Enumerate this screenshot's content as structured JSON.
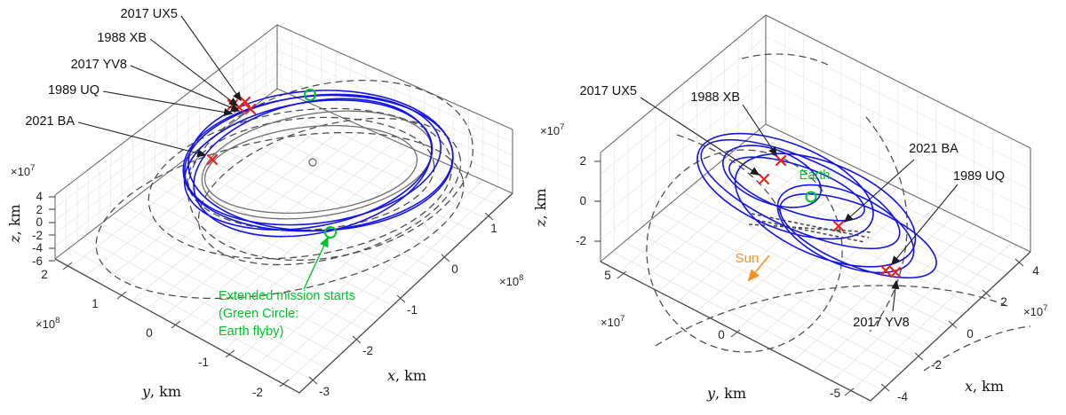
{
  "colors": {
    "trajectory_blue": "#1414e8",
    "orbit_gray": "#6e6e6e",
    "dashed_gray": "#4a4a4a",
    "marker_red": "#e8231e",
    "annotation_green": "#00c22a",
    "sun_orange": "#f59120",
    "axis_edge": "#484848",
    "grid": "#e0e0e0"
  },
  "left_plot": {
    "callouts": [
      "2017 UX5",
      "1988 XB",
      "2017 YV8",
      "1989 UQ",
      "2021 BA"
    ],
    "annotation_lines": [
      "Extended mission starts",
      "(Green Circle:",
      "Earth flyby)"
    ],
    "x_axis": {
      "var": "x",
      "unit": ", km",
      "exp_base": "×10",
      "exp_power": "8",
      "ticks": [
        "-3",
        "-2",
        "-1",
        "0",
        "1"
      ]
    },
    "y_axis": {
      "var": "y",
      "unit": ", km",
      "exp_base": "×10",
      "exp_power": "8",
      "ticks": [
        "2",
        "1",
        "0",
        "-1",
        "-2"
      ]
    },
    "z_axis": {
      "var": "z",
      "unit": ", km",
      "exp_base": "×10",
      "exp_power": "7",
      "ticks": [
        "4",
        "2",
        "0",
        "-2",
        "-4",
        "-6"
      ]
    }
  },
  "right_plot": {
    "callouts": [
      "2017 UX5",
      "1988 XB",
      "2021 BA",
      "1989 UQ",
      "2017 YV8"
    ],
    "earth_label": "Earth",
    "sun_label": "Sun",
    "x_axis": {
      "var": "x",
      "unit": ", km",
      "exp_base": "×10",
      "exp_power": "7",
      "ticks": [
        "-4",
        "-2",
        "0",
        "2",
        "4"
      ]
    },
    "y_axis": {
      "var": "y",
      "unit": ", km",
      "exp_base": "×10",
      "exp_power": "7",
      "ticks": [
        "5",
        "0",
        "-5"
      ]
    },
    "z_axis": {
      "var": "z",
      "unit": ", km",
      "exp_base": "×10",
      "exp_power": "7",
      "ticks": [
        "2",
        "0",
        "-2"
      ]
    }
  },
  "chart_data": [
    {
      "type": "line",
      "projection": "3d",
      "frame": "heliocentric",
      "xlabel": "x, km",
      "ylabel": "y, km",
      "zlabel": "z, km",
      "x_exponent": 100000000.0,
      "y_exponent": 100000000.0,
      "z_exponent": 10000000.0,
      "xticks": [
        -3,
        -2,
        -1,
        0,
        1
      ],
      "yticks": [
        2,
        1,
        0,
        -1,
        -2
      ],
      "zticks": [
        4,
        2,
        0,
        -2,
        -4,
        -6
      ],
      "xlim_km": [
        -350000000.0,
        150000000.0
      ],
      "ylim_km": [
        -220000000.0,
        220000000.0
      ],
      "zlim_km": [
        -70000000.0,
        50000000.0
      ],
      "grid": true,
      "series": [
        {
          "name": "spacecraft extended-mission trajectory (multiple revolutions)",
          "style": "solid",
          "color": "#1414e8"
        },
        {
          "name": "Earth orbit",
          "style": "solid",
          "color": "#6e6e6e"
        },
        {
          "name": "asteroid orbits",
          "style": "dashed",
          "color": "#4a4a4a"
        }
      ],
      "markers": [
        {
          "label": "2017 UX5",
          "symbol": "x",
          "color": "#e8231e"
        },
        {
          "label": "1988 XB",
          "symbol": "x",
          "color": "#e8231e"
        },
        {
          "label": "2017 YV8",
          "symbol": "x",
          "color": "#e8231e"
        },
        {
          "label": "1989 UQ",
          "symbol": "x",
          "color": "#e8231e"
        },
        {
          "label": "2021 BA",
          "symbol": "x",
          "color": "#e8231e"
        },
        {
          "label": "Extended mission starts (Green Circle: Earth flyby)",
          "symbol": "circle",
          "color": "#00c22a"
        },
        {
          "label": "Sun (center)",
          "symbol": "circle",
          "color": "#787878"
        }
      ]
    },
    {
      "type": "line",
      "projection": "3d",
      "frame": "Earth-centered",
      "xlabel": "x, km",
      "ylabel": "y, km",
      "zlabel": "z, km",
      "x_exponent": 10000000.0,
      "y_exponent": 10000000.0,
      "z_exponent": 10000000.0,
      "xticks": [
        -4,
        -2,
        0,
        2,
        4
      ],
      "yticks": [
        5,
        0,
        -5
      ],
      "zticks": [
        2,
        0,
        -2
      ],
      "xlim_km": [
        -50000000.0,
        50000000.0
      ],
      "ylim_km": [
        -70000000.0,
        70000000.0
      ],
      "zlim_km": [
        -26000000.0,
        26000000.0
      ],
      "grid": true,
      "series": [
        {
          "name": "spacecraft trajectory relative to Earth (flyby loops)",
          "style": "solid",
          "color": "#1414e8"
        },
        {
          "name": "asteroid orbits relative to Earth",
          "style": "dashed",
          "color": "#4a4a4a"
        }
      ],
      "markers": [
        {
          "label": "2017 UX5",
          "symbol": "x",
          "color": "#e8231e"
        },
        {
          "label": "1988 XB",
          "symbol": "x",
          "color": "#e8231e"
        },
        {
          "label": "2021 BA",
          "symbol": "x",
          "color": "#e8231e"
        },
        {
          "label": "1989 UQ",
          "symbol": "x",
          "color": "#e8231e"
        },
        {
          "label": "2017 YV8",
          "symbol": "x",
          "color": "#e8231e"
        },
        {
          "label": "Earth",
          "symbol": "circle",
          "color": "#00c22a"
        },
        {
          "label": "Sun direction",
          "symbol": "arrow",
          "color": "#f59120"
        }
      ]
    }
  ]
}
